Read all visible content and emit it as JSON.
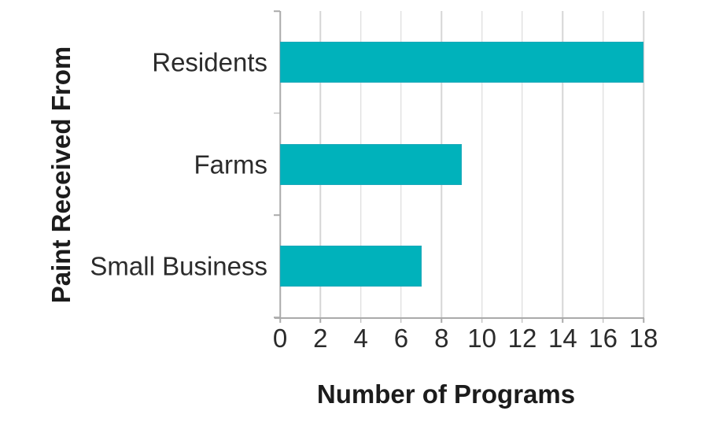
{
  "chart_data": {
    "type": "bar",
    "orientation": "horizontal",
    "title": "",
    "categories": [
      "Residents",
      "Farms",
      "Small Business"
    ],
    "values": [
      18,
      9,
      7
    ],
    "xlabel": "Number of Programs",
    "ylabel": "Paint Received From",
    "xlim": [
      0,
      18
    ],
    "xticks": [
      0,
      2,
      4,
      6,
      8,
      10,
      12,
      14,
      16,
      18
    ],
    "grid": "vertical gridlines on, every 2 units",
    "legend": "none",
    "colors": {
      "bar": "#00b2bb",
      "grid": "#d6d6d6",
      "axis": "#aaaaaa",
      "label_text": "#2b2b2b",
      "title_text": "#1c1c1c",
      "background": "#ffffff"
    }
  }
}
